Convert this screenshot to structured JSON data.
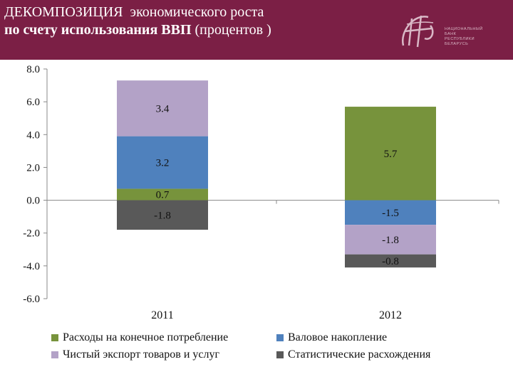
{
  "header": {
    "title_line1_part1": "ДЕКОМПОЗИЦИЯ",
    "title_line1_part2": "экономического роста",
    "title_line2_part1": "по счету использования ВВП",
    "title_line2_part2": "(процентов )",
    "logo_text": [
      "НАЦИОНАЛЬНЫЙ",
      "БАНК",
      "РЕСПУБЛИКИ",
      "БЕЛАРУСЬ"
    ],
    "background_color": "#7b1f45"
  },
  "chart_data": {
    "type": "bar",
    "stacked": true,
    "categories": [
      "2011",
      "2012"
    ],
    "ylim": [
      -6,
      8
    ],
    "yticks": [
      "8.0",
      "6.0",
      "4.0",
      "2.0",
      "0.0",
      "-2.0",
      "-4.0",
      "-6.0"
    ],
    "grid": false,
    "legend_position": "bottom",
    "series": [
      {
        "name": "Расходы на конечное потребление",
        "color": "#77933c",
        "values": [
          0.7,
          5.7
        ],
        "labels": [
          "0.7",
          "5.7"
        ]
      },
      {
        "name": "Валовое накопление",
        "color": "#4f81bd",
        "values": [
          3.2,
          -1.5
        ],
        "labels": [
          "3.2",
          "-1.5"
        ]
      },
      {
        "name": "Чистый экспорт товаров и услуг",
        "color": "#b3a2c7",
        "values": [
          3.4,
          -1.8
        ],
        "labels": [
          "3.4",
          "-1.8"
        ]
      },
      {
        "name": "Статистические расхождения",
        "color": "#595959",
        "values": [
          -1.8,
          -0.8
        ],
        "labels": [
          "-1.8",
          "-0.8"
        ]
      }
    ]
  }
}
